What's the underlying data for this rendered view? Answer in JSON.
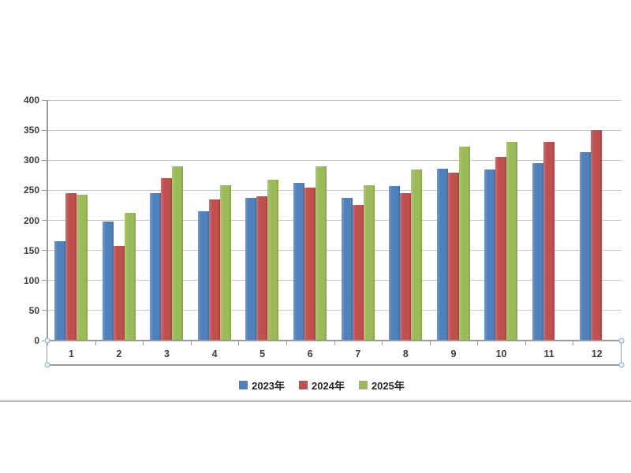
{
  "chart_data": {
    "type": "bar",
    "title": "",
    "xlabel": "",
    "ylabel": "",
    "categories": [
      "1",
      "2",
      "3",
      "4",
      "5",
      "6",
      "7",
      "8",
      "9",
      "10",
      "11",
      "12"
    ],
    "series": [
      {
        "name": "2023年",
        "color": "#4F81BD",
        "color_light": "#7399c9",
        "color_dark": "#3f6da5",
        "values": [
          165,
          198,
          245,
          215,
          237,
          262,
          237,
          257,
          286,
          284,
          295,
          314
        ]
      },
      {
        "name": "2024年",
        "color": "#C0504D",
        "color_light": "#cd6f6c",
        "color_dark": "#a83f3d",
        "values": [
          245,
          158,
          270,
          235,
          240,
          255,
          226,
          245,
          279,
          305,
          330,
          350
        ]
      },
      {
        "name": "2025年",
        "color": "#9BBB59",
        "color_light": "#adc876",
        "color_dark": "#85a23e",
        "values": [
          243,
          212,
          290,
          259,
          268,
          290,
          259,
          285,
          322,
          330,
          null,
          null
        ]
      }
    ],
    "ylim": [
      0,
      400
    ],
    "ytick_interval": 50,
    "yticks": [
      "0",
      "50",
      "100",
      "150",
      "200",
      "250",
      "300",
      "350",
      "400"
    ],
    "grid": true,
    "legend_position": "bottom",
    "legend_entries": [
      "2023年",
      "2024年",
      "2025年"
    ]
  },
  "colors": {
    "gridline": "#c6c6c6",
    "axis_line": "#9a9a9a",
    "axis_label": "#3d3d3d",
    "selection_handle_fill": "#e7f1fa",
    "selection_handle_border": "#8fb0d4",
    "background": "#ffffff"
  }
}
